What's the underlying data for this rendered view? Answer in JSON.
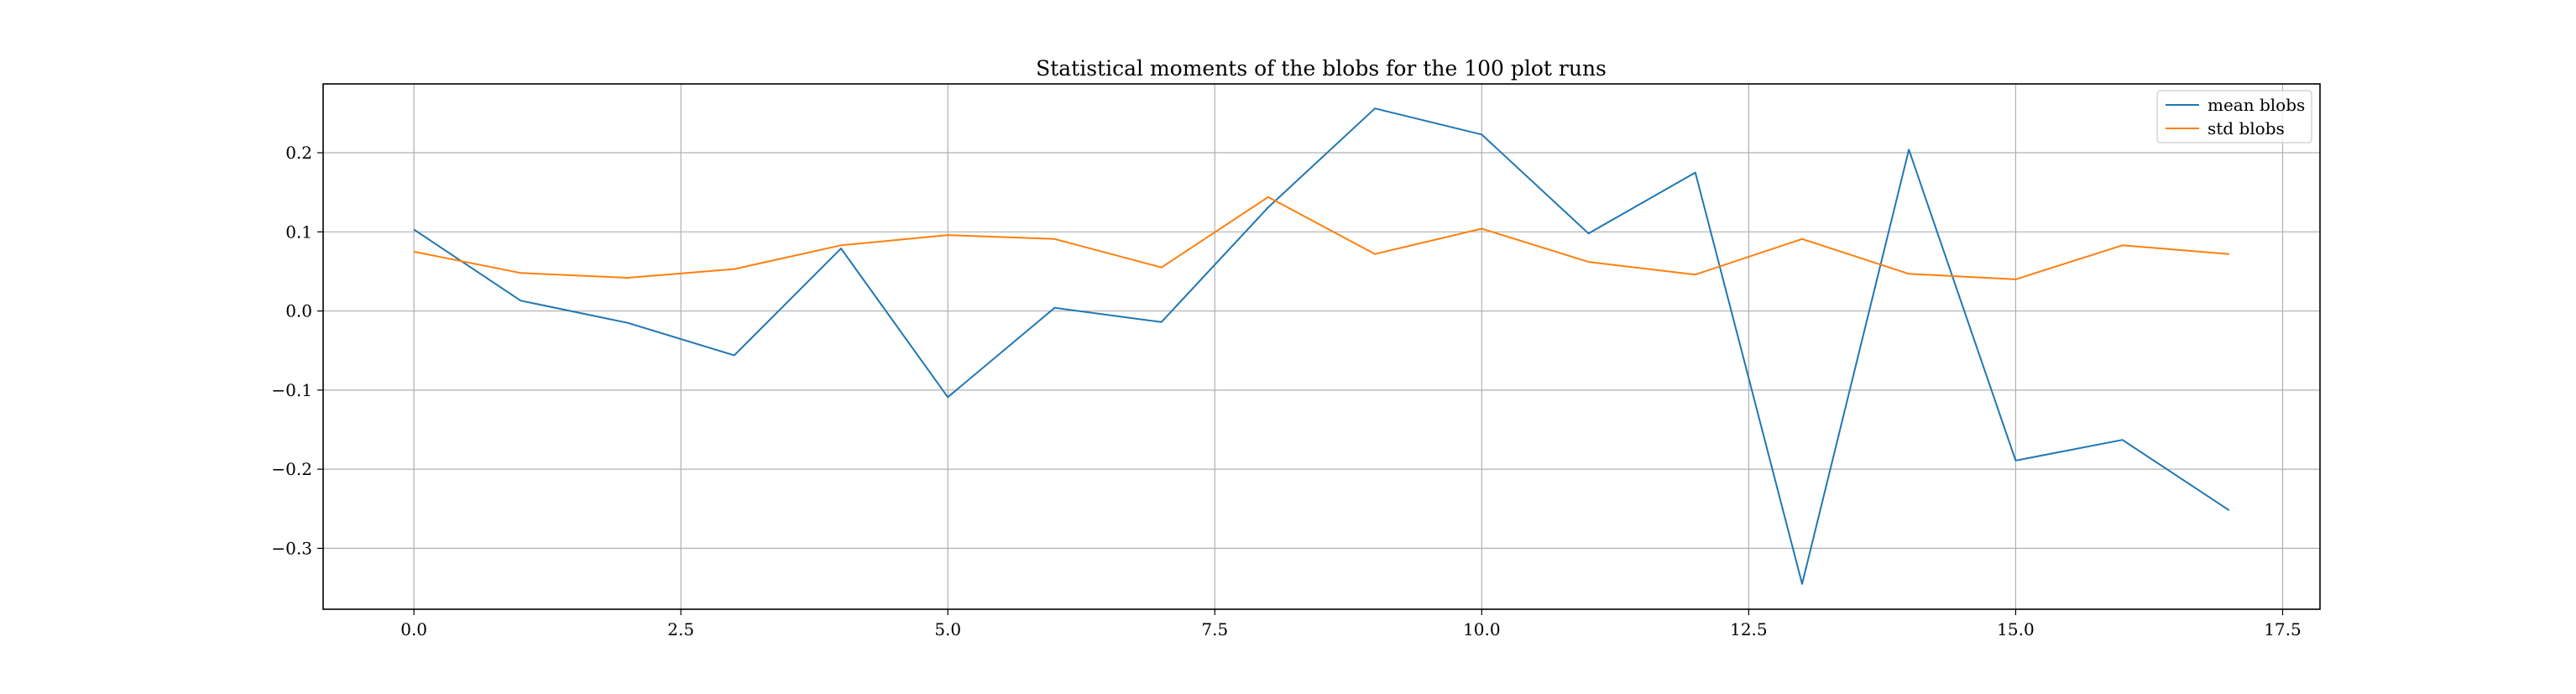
{
  "chart_data": {
    "type": "line",
    "title": "Statistical moments of the blobs for the 100 plot runs",
    "xlabel": "",
    "ylabel": "",
    "x": [
      0,
      1,
      2,
      3,
      4,
      5,
      6,
      7,
      8,
      9,
      10,
      11,
      12,
      13,
      14,
      15,
      16,
      17
    ],
    "series": [
      {
        "name": "mean blobs",
        "color": "#1f77b4",
        "values": [
          0.103,
          0.013,
          -0.015,
          -0.056,
          0.079,
          -0.109,
          0.004,
          -0.014,
          0.131,
          0.256,
          0.223,
          0.098,
          0.175,
          -0.345,
          0.204,
          -0.189,
          -0.163,
          -0.252
        ]
      },
      {
        "name": "std blobs",
        "color": "#ff7f0e",
        "values": [
          0.075,
          0.048,
          0.042,
          0.053,
          0.083,
          0.096,
          0.091,
          0.055,
          0.144,
          0.072,
          0.104,
          0.062,
          0.046,
          0.091,
          0.047,
          0.04,
          0.083,
          0.072
        ]
      }
    ],
    "xlim": [
      -0.85,
      17.85
    ],
    "ylim": [
      -0.377,
      0.287
    ],
    "xticks": [
      0.0,
      2.5,
      5.0,
      7.5,
      10.0,
      12.5,
      15.0,
      17.5
    ],
    "xtick_labels": [
      "0.0",
      "2.5",
      "5.0",
      "7.5",
      "10.0",
      "12.5",
      "15.0",
      "17.5"
    ],
    "yticks": [
      -0.3,
      -0.2,
      -0.1,
      0.0,
      0.1,
      0.2
    ],
    "ytick_labels": [
      "−0.3",
      "−0.2",
      "−0.1",
      "0.0",
      "0.1",
      "0.2"
    ],
    "grid": true,
    "legend_position": "top-right"
  }
}
